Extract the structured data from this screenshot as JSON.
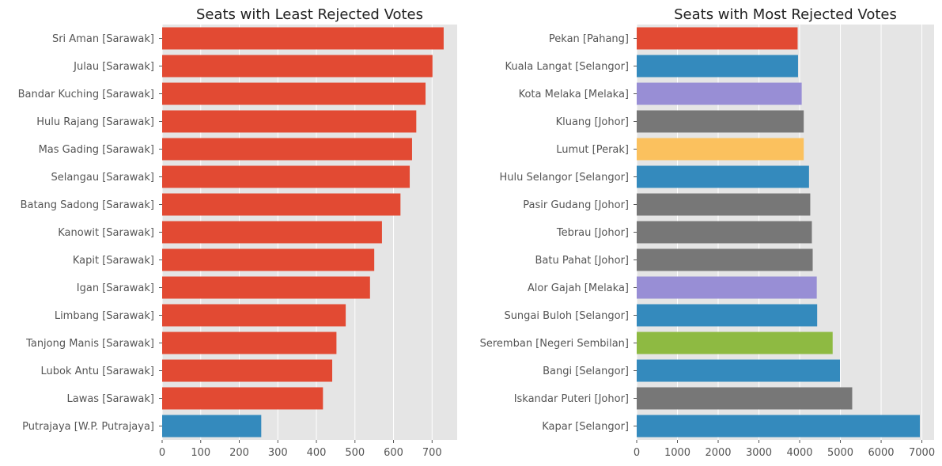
{
  "colors": {
    "Sarawak": "#E24A33",
    "W.P. Putrajaya": "#348ABD",
    "Selangor": "#348ABD",
    "Pahang": "#E24A33",
    "Melaka": "#988ED5",
    "Johor": "#777777",
    "Perak": "#FBC15E",
    "Negeri Sembilan": "#8EBA42"
  },
  "chart_data": [
    {
      "type": "bar",
      "orientation": "horizontal",
      "title": "Seats with Least Rejected Votes",
      "xlabel": "",
      "ylabel": "",
      "xlim": [
        0,
        765
      ],
      "xticks": [
        0,
        100,
        200,
        300,
        400,
        500,
        600,
        700
      ],
      "grid": true,
      "categories": [
        "Sri Aman [Sarawak]",
        "Julau [Sarawak]",
        "Bandar Kuching [Sarawak]",
        "Hulu Rajang [Sarawak]",
        "Mas Gading [Sarawak]",
        "Selangau [Sarawak]",
        "Batang Sadong [Sarawak]",
        "Kanowit [Sarawak]",
        "Kapit [Sarawak]",
        "Igan [Sarawak]",
        "Limbang [Sarawak]",
        "Tanjong Manis [Sarawak]",
        "Lubok Antu [Sarawak]",
        "Lawas [Sarawak]",
        "Putrajaya [W.P. Putrajaya]"
      ],
      "values": [
        730,
        701,
        683,
        659,
        648,
        642,
        618,
        570,
        550,
        539,
        476,
        452,
        441,
        417,
        257
      ],
      "groups": [
        "Sarawak",
        "Sarawak",
        "Sarawak",
        "Sarawak",
        "Sarawak",
        "Sarawak",
        "Sarawak",
        "Sarawak",
        "Sarawak",
        "Sarawak",
        "Sarawak",
        "Sarawak",
        "Sarawak",
        "Sarawak",
        "W.P. Putrajaya"
      ]
    },
    {
      "type": "bar",
      "orientation": "horizontal",
      "title": "Seats with Most Rejected Votes",
      "xlabel": "",
      "ylabel": "",
      "xlim": [
        0,
        7300
      ],
      "xticks": [
        0,
        1000,
        2000,
        3000,
        4000,
        5000,
        6000,
        7000
      ],
      "grid": true,
      "categories": [
        "Pekan [Pahang]",
        "Kuala Langat [Selangor]",
        "Kota Melaka [Melaka]",
        "Kluang [Johor]",
        "Lumut [Perak]",
        "Hulu Selangor [Selangor]",
        "Pasir Gudang [Johor]",
        "Tebrau [Johor]",
        "Batu Pahat [Johor]",
        "Alor Gajah [Melaka]",
        "Sungai Buloh [Selangor]",
        "Seremban [Negeri Sembilan]",
        "Bangi [Selangor]",
        "Iskandar Puteri [Johor]",
        "Kapar [Selangor]"
      ],
      "values": [
        3950,
        3960,
        4050,
        4100,
        4100,
        4230,
        4260,
        4300,
        4320,
        4420,
        4430,
        4810,
        4990,
        5290,
        6950
      ],
      "groups": [
        "Pahang",
        "Selangor",
        "Melaka",
        "Johor",
        "Perak",
        "Selangor",
        "Johor",
        "Johor",
        "Johor",
        "Melaka",
        "Selangor",
        "Negeri Sembilan",
        "Selangor",
        "Johor",
        "Selangor"
      ]
    }
  ]
}
